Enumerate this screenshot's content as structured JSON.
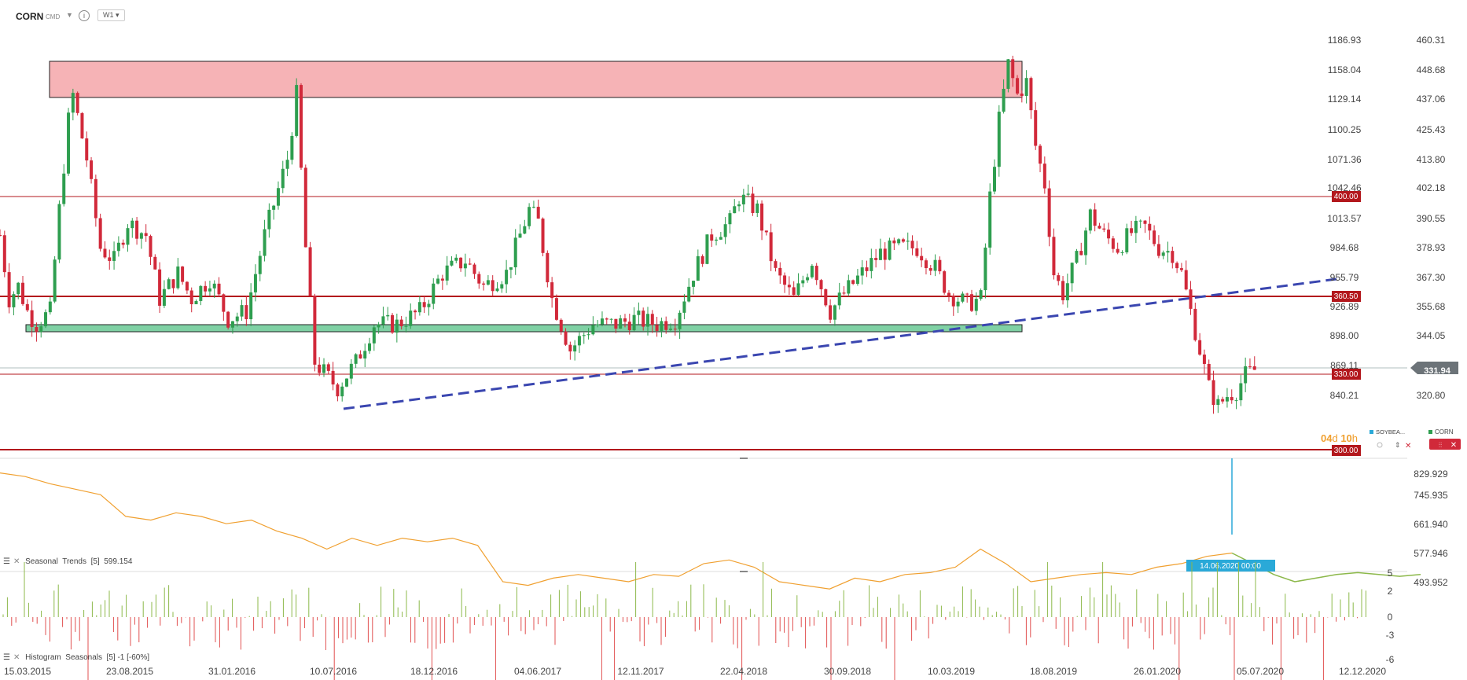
{
  "toolbar": {
    "symbol": "CORN",
    "exchange": "CMD",
    "timeframe": "W1"
  },
  "colors": {
    "up": "#2e9e4f",
    "down": "#d1293a",
    "resistance": "#f6b3b6",
    "support": "#7fd1a4",
    "trendline": "#3a46b0",
    "level": "#b3171c",
    "seasonal": "#f0a030",
    "forecast": "#8cb84a",
    "spike": "#2aa9d8"
  },
  "price_axis": {
    "left_labels": [
      "1186.93",
      "1158.04",
      "1129.14",
      "1100.25",
      "1071.36",
      "1042.46",
      "1013.57",
      "984.68",
      "955.79",
      "926.89",
      "898.00",
      "869.11",
      "840.21"
    ],
    "right_labels": [
      "460.31",
      "448.68",
      "437.06",
      "425.43",
      "413.80",
      "402.18",
      "390.55",
      "378.93",
      "367.30",
      "355.68",
      "344.05",
      "",
      "320.80"
    ]
  },
  "levels": [
    {
      "label": "400.00"
    },
    {
      "label": "360.50"
    },
    {
      "label": "330.00"
    },
    {
      "label": "300.00"
    }
  ],
  "current_price": "331.94",
  "countdown": {
    "days": "04",
    "d": "d",
    "hours": "10",
    "h": "h"
  },
  "legend": {
    "left": "SOYBEA...",
    "right": "CORN"
  },
  "seasonal_panel": {
    "title": "Seasonal",
    "sub": "Trends",
    "param": "[5]",
    "value": "599.154",
    "axis": [
      "829.929",
      "745.935",
      "661.940",
      "577.946",
      "493.952"
    ],
    "cursor_label": "14.06.2020 00:00"
  },
  "histogram_panel": {
    "title": "Histogram",
    "sub": "Seasonals",
    "param": "[5] -1 [-60%]",
    "axis": [
      "5",
      "2",
      "0",
      "-3",
      "-6"
    ]
  },
  "time_axis": [
    "15.03.2015",
    "23.08.2015",
    "31.01.2016",
    "10.07.2016",
    "18.12.2016",
    "04.06.2017",
    "12.11.2017",
    "22.04.2018",
    "30.09.2018",
    "10.03.2019",
    "18.08.2019",
    "26.01.2020",
    "05.07.2020",
    "12.12.2020"
  ],
  "chart_data": [
    {
      "type": "candlestick",
      "title": "CORN",
      "ylabel": "",
      "ylim": [
        295,
        465
      ],
      "frequency": "weekly",
      "series": [
        {
          "name": "CORN",
          "keypoints": [
            {
              "x": "15.03.2015",
              "y": 385
            },
            {
              "x": "29.03.2015",
              "y": 360
            },
            {
              "x": "12.04.2015",
              "y": 365
            },
            {
              "x": "26.04.2015",
              "y": 355
            },
            {
              "x": "10.05.2015",
              "y": 350
            },
            {
              "x": "31.05.2015",
              "y": 355
            },
            {
              "x": "14.06.2015",
              "y": 395
            },
            {
              "x": "28.06.2015",
              "y": 430
            },
            {
              "x": "05.07.2015",
              "y": 440
            },
            {
              "x": "26.07.2015",
              "y": 415
            },
            {
              "x": "16.08.2015",
              "y": 380
            },
            {
              "x": "06.09.2015",
              "y": 375
            },
            {
              "x": "27.09.2015",
              "y": 390
            },
            {
              "x": "25.10.2015",
              "y": 385
            },
            {
              "x": "15.11.2015",
              "y": 360
            },
            {
              "x": "13.12.2015",
              "y": 370
            },
            {
              "x": "03.01.2016",
              "y": 360
            },
            {
              "x": "31.01.2016",
              "y": 368
            },
            {
              "x": "28.02.2016",
              "y": 352
            },
            {
              "x": "27.03.2016",
              "y": 355
            },
            {
              "x": "24.04.2016",
              "y": 385
            },
            {
              "x": "29.05.2016",
              "y": 415
            },
            {
              "x": "12.06.2016",
              "y": 440
            },
            {
              "x": "26.06.2016",
              "y": 380
            },
            {
              "x": "10.07.2016",
              "y": 335
            },
            {
              "x": "14.08.2016",
              "y": 325
            },
            {
              "x": "11.09.2016",
              "y": 335
            },
            {
              "x": "09.10.2016",
              "y": 350
            },
            {
              "x": "13.11.2016",
              "y": 350
            },
            {
              "x": "18.12.2016",
              "y": 355
            },
            {
              "x": "22.01.2017",
              "y": 370
            },
            {
              "x": "26.02.2017",
              "y": 375
            },
            {
              "x": "26.03.2017",
              "y": 365
            },
            {
              "x": "30.04.2017",
              "y": 370
            },
            {
              "x": "21.05.2017",
              "y": 385
            },
            {
              "x": "04.06.2017",
              "y": 395
            },
            {
              "x": "18.06.2017",
              "y": 390
            },
            {
              "x": "09.07.2017",
              "y": 360
            },
            {
              "x": "06.08.2017",
              "y": 340
            },
            {
              "x": "10.09.2017",
              "y": 350
            },
            {
              "x": "15.10.2017",
              "y": 350
            },
            {
              "x": "12.11.2017",
              "y": 352
            },
            {
              "x": "17.12.2017",
              "y": 350
            },
            {
              "x": "14.01.2018",
              "y": 352
            },
            {
              "x": "11.02.2018",
              "y": 370
            },
            {
              "x": "11.03.2018",
              "y": 385
            },
            {
              "x": "08.04.2018",
              "y": 390
            },
            {
              "x": "22.04.2018",
              "y": 400
            },
            {
              "x": "20.05.2018",
              "y": 395
            },
            {
              "x": "17.06.2018",
              "y": 370
            },
            {
              "x": "15.07.2018",
              "y": 360
            },
            {
              "x": "12.08.2018",
              "y": 375
            },
            {
              "x": "09.09.2018",
              "y": 355
            },
            {
              "x": "30.09.2018",
              "y": 362
            },
            {
              "x": "28.10.2018",
              "y": 370
            },
            {
              "x": "25.11.2018",
              "y": 378
            },
            {
              "x": "23.12.2018",
              "y": 380
            },
            {
              "x": "20.01.2019",
              "y": 380
            },
            {
              "x": "17.02.2019",
              "y": 372
            },
            {
              "x": "10.03.2019",
              "y": 362
            },
            {
              "x": "07.04.2019",
              "y": 358
            },
            {
              "x": "28.04.2019",
              "y": 360
            },
            {
              "x": "12.05.2019",
              "y": 400
            },
            {
              "x": "26.05.2019",
              "y": 430
            },
            {
              "x": "09.06.2019",
              "y": 452
            },
            {
              "x": "23.06.2019",
              "y": 440
            },
            {
              "x": "07.07.2019",
              "y": 445
            },
            {
              "x": "21.07.2019",
              "y": 420
            },
            {
              "x": "04.08.2019",
              "y": 405
            },
            {
              "x": "18.08.2019",
              "y": 370
            },
            {
              "x": "01.09.2019",
              "y": 362
            },
            {
              "x": "22.09.2019",
              "y": 375
            },
            {
              "x": "13.10.2019",
              "y": 393
            },
            {
              "x": "03.11.2019",
              "y": 385
            },
            {
              "x": "24.11.2019",
              "y": 380
            },
            {
              "x": "15.12.2019",
              "y": 386
            },
            {
              "x": "05.01.2020",
              "y": 388
            },
            {
              "x": "26.01.2020",
              "y": 380
            },
            {
              "x": "16.02.2020",
              "y": 378
            },
            {
              "x": "01.03.2020",
              "y": 370
            },
            {
              "x": "15.03.2020",
              "y": 355
            },
            {
              "x": "29.03.2020",
              "y": 340
            },
            {
              "x": "12.04.2020",
              "y": 325
            },
            {
              "x": "26.04.2020",
              "y": 318
            },
            {
              "x": "10.05.2020",
              "y": 322
            },
            {
              "x": "24.05.2020",
              "y": 324
            },
            {
              "x": "07.06.2020",
              "y": 330
            },
            {
              "x": "21.06.2020",
              "y": 332
            }
          ]
        }
      ]
    },
    {
      "type": "line",
      "title": "Seasonal Trends [5]",
      "ylim": [
        493.952,
        829.929
      ],
      "series": [
        {
          "name": "Seasonal Trends",
          "values": [
            820,
            810,
            790,
            775,
            760,
            700,
            690,
            710,
            700,
            680,
            690,
            660,
            640,
            610,
            640,
            620,
            640,
            630,
            640,
            620,
            520,
            510,
            530,
            540,
            530,
            520,
            540,
            535,
            570,
            580,
            560,
            520,
            510,
            500,
            530,
            520,
            540,
            545,
            560,
            610,
            570,
            520,
            530,
            540,
            545,
            540,
            560,
            570,
            590,
            599
          ]
        },
        {
          "name": "Forecast",
          "values": [
            599,
            570,
            540,
            520,
            530,
            540,
            545,
            540,
            535,
            540
          ]
        }
      ]
    },
    {
      "type": "bar",
      "title": "Histogram Seasonals [5] -1 [-60%]",
      "ylim": [
        -6,
        5
      ]
    }
  ]
}
